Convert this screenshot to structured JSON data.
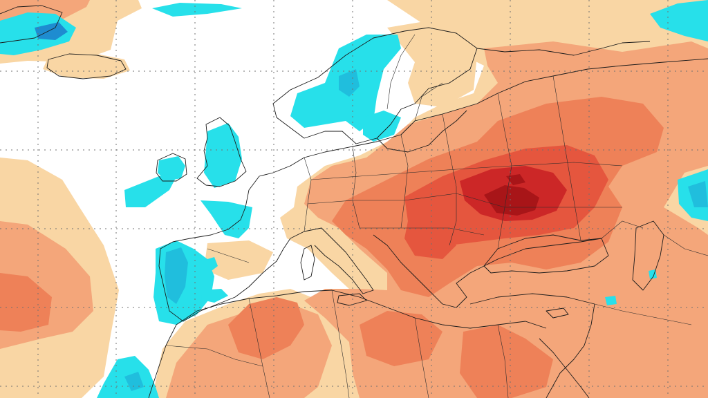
{
  "map": {
    "type": "temperature-anomaly",
    "palette": {
      "anomaly_plus_1": "#f9d6a4",
      "anomaly_plus_2": "#f4a67a",
      "anomaly_plus_3": "#ee8158",
      "anomaly_plus_4": "#e5563e",
      "anomaly_plus_5": "#cc2727",
      "anomaly_plus_6": "#a81518",
      "anomaly_minus_1": "#27e0ea",
      "anomaly_minus_2": "#20bedd",
      "anomaly_minus_3": "#1e8cd0",
      "background": "#ffffff",
      "coastline": "#1a1a1a",
      "gridline": "#707070"
    },
    "gridlines": "dotted",
    "regions_depicted": [
      "iceland-area-cool",
      "scandinavia-cool",
      "british-isles-cool",
      "iberia-west-cool",
      "canary-islands-cool",
      "eastern-europe-warm-core",
      "north-africa-warm",
      "middle-east-warm",
      "caspian-east-cool"
    ]
  }
}
